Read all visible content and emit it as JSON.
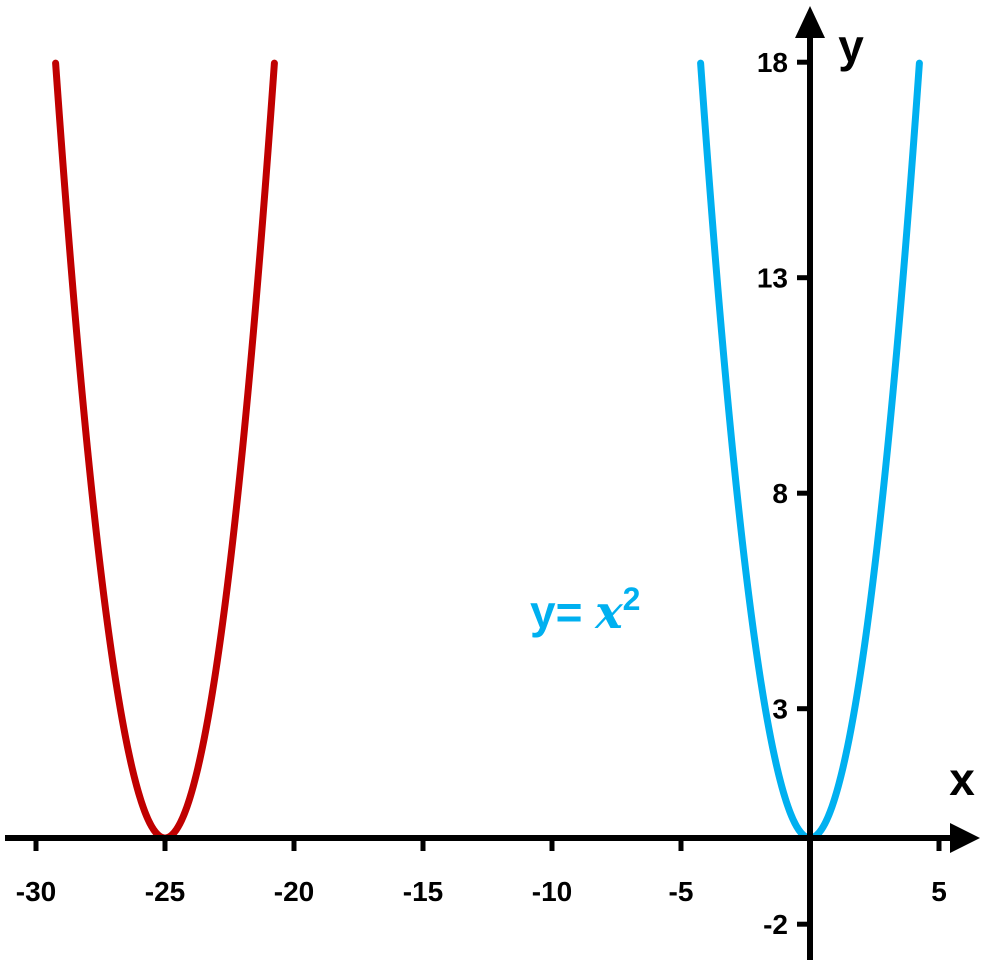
{
  "chart_data": {
    "type": "line",
    "xlabel": "x",
    "ylabel": "y",
    "xlim": [
      -31,
      7
    ],
    "ylim": [
      -3,
      19.5
    ],
    "x_ticks": [
      -30,
      -25,
      -20,
      -15,
      -10,
      -5,
      5
    ],
    "x_tick_labels": [
      "-30",
      "-25",
      "-20",
      "-15",
      "-10",
      "-5",
      "5"
    ],
    "y_ticks": [
      -2,
      3,
      8,
      13,
      18
    ],
    "y_tick_labels": [
      "-2",
      "3",
      "8",
      "13",
      "18"
    ],
    "grid": false,
    "series": [
      {
        "color": "#C00000",
        "vertex": [
          -25,
          0
        ],
        "x_range": [
          -29.24,
          -20.76
        ],
        "y_max": 18
      },
      {
        "name": "y= x²",
        "color": "#00B0F0",
        "vertex": [
          0,
          0
        ],
        "x_range": [
          -4.24,
          4.24
        ],
        "y_max": 18
      }
    ],
    "annotations": [
      {
        "text_prefix": "y= ",
        "text_var": "x",
        "text_sup": "2",
        "color": "#00B0F0",
        "x": -11,
        "y": 5.5
      }
    ]
  }
}
